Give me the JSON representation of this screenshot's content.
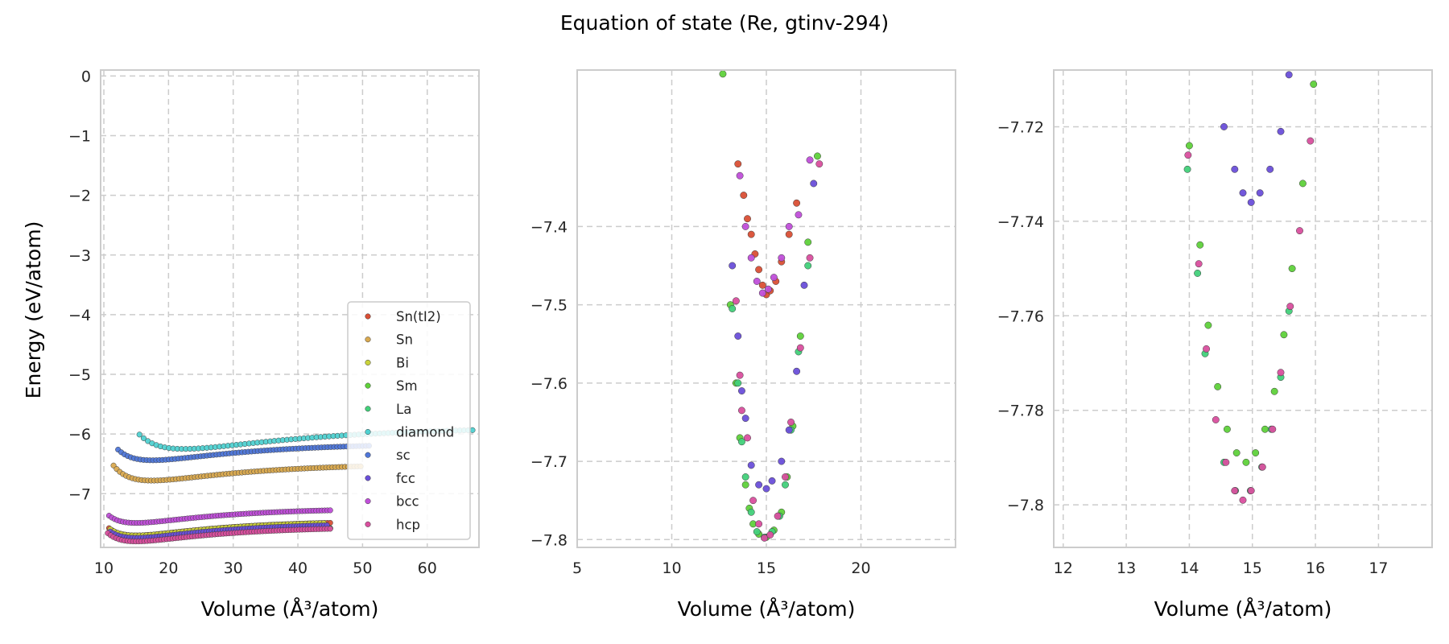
{
  "figure": {
    "title": "Equation of state (Re, gtinv-294)",
    "ylabel": "Energy (eV/atom)",
    "xlabel": "Volume (Å³/atom)"
  },
  "colors": {
    "Sn(tI2)": "#d94f35",
    "Sn": "#d9a94f",
    "Bi": "#c9d23a",
    "Sm": "#5fd13b",
    "La": "#42d07a",
    "diamond": "#4fd1d1",
    "sc": "#4f77d9",
    "fcc": "#6a4fd9",
    "bcc": "#c04fd9",
    "hcp": "#d94f9e"
  },
  "chart_data": [
    {
      "type": "scatter",
      "xlim": [
        9.5,
        68
      ],
      "ylim": [
        -7.9,
        0.1
      ],
      "xticks": [
        10,
        20,
        30,
        40,
        50,
        60
      ],
      "yticks": [
        0,
        -1,
        -2,
        -3,
        -4,
        -5,
        -6,
        -7
      ],
      "xlabel": "Volume (Å³/atom)",
      "ylabel": "Energy (eV/atom)",
      "grid": true,
      "legend_position": "lower-right",
      "legend": [
        "Sn(tI2)",
        "Sn",
        "Bi",
        "Sm",
        "La",
        "diamond",
        "sc",
        "fcc",
        "bcc",
        "hcp"
      ],
      "series": [
        {
          "name": "Sn(tI2)",
          "curve": {
            "v0": 15.0,
            "e0": -7.7,
            "vmin": 10.8,
            "vmax": 45,
            "n": 80
          }
        },
        {
          "name": "Sn",
          "curve": {
            "v0": 17.4,
            "e0": -6.78,
            "vmin": 11.5,
            "vmax": 49.7,
            "n": 80
          }
        },
        {
          "name": "Bi",
          "curve": {
            "v0": 15.0,
            "e0": -7.7,
            "vmin": 11.0,
            "vmax": 44,
            "n": 60
          }
        },
        {
          "name": "Sm",
          "curve": {
            "v0": 15.0,
            "e0": -7.79,
            "vmin": 10.9,
            "vmax": 45,
            "n": 80
          }
        },
        {
          "name": "La",
          "curve": {
            "v0": 15.0,
            "e0": -7.79,
            "vmin": 11.0,
            "vmax": 45,
            "n": 80
          }
        },
        {
          "name": "diamond",
          "curve": {
            "v0": 22.4,
            "e0": -6.25,
            "vmin": 15.5,
            "vmax": 67,
            "n": 80
          }
        },
        {
          "name": "sc",
          "curve": {
            "v0": 17.5,
            "e0": -6.44,
            "vmin": 12.2,
            "vmax": 51,
            "n": 80
          }
        },
        {
          "name": "fcc",
          "curve": {
            "v0": 15.0,
            "e0": -7.74,
            "vmin": 11.0,
            "vmax": 44.5,
            "n": 80
          }
        },
        {
          "name": "bcc",
          "curve": {
            "v0": 15.0,
            "e0": -7.49,
            "vmin": 10.8,
            "vmax": 45,
            "n": 80
          }
        },
        {
          "name": "hcp",
          "curve": {
            "v0": 15.0,
            "e0": -7.8,
            "vmin": 10.6,
            "vmax": 45,
            "n": 80
          }
        }
      ]
    },
    {
      "type": "scatter",
      "xlim": [
        5,
        25
      ],
      "ylim": [
        -7.81,
        -7.2
      ],
      "xticks": [
        5,
        10,
        15,
        20
      ],
      "yticks": [
        -7.4,
        -7.5,
        -7.6,
        -7.7,
        -7.8
      ],
      "xlabel": "Volume (Å³/atom)",
      "grid": true,
      "series": [
        {
          "name": "Sn(tI2)",
          "points": [
            [
              13.5,
              -7.32
            ],
            [
              13.8,
              -7.36
            ],
            [
              14.0,
              -7.39
            ],
            [
              14.2,
              -7.41
            ],
            [
              14.4,
              -7.435
            ],
            [
              14.6,
              -7.455
            ],
            [
              14.8,
              -7.475
            ],
            [
              15.0,
              -7.487
            ],
            [
              15.2,
              -7.482
            ],
            [
              15.5,
              -7.47
            ],
            [
              15.8,
              -7.445
            ],
            [
              16.2,
              -7.41
            ],
            [
              16.6,
              -7.37
            ]
          ]
        },
        {
          "name": "Sm",
          "points": [
            [
              12.7,
              -7.205
            ],
            [
              13.1,
              -7.5
            ],
            [
              13.4,
              -7.6
            ],
            [
              13.6,
              -7.67
            ],
            [
              13.9,
              -7.73
            ],
            [
              14.1,
              -7.76
            ],
            [
              14.3,
              -7.78
            ],
            [
              14.6,
              -7.793
            ],
            [
              15.0,
              -7.797
            ],
            [
              15.4,
              -7.788
            ],
            [
              15.8,
              -7.765
            ],
            [
              16.1,
              -7.72
            ],
            [
              16.4,
              -7.655
            ],
            [
              16.8,
              -7.54
            ],
            [
              17.2,
              -7.42
            ],
            [
              17.7,
              -7.31
            ]
          ]
        },
        {
          "name": "La",
          "points": [
            [
              13.2,
              -7.505
            ],
            [
              13.5,
              -7.6
            ],
            [
              13.7,
              -7.675
            ],
            [
              13.9,
              -7.72
            ],
            [
              14.2,
              -7.765
            ],
            [
              14.5,
              -7.79
            ],
            [
              14.9,
              -7.797
            ],
            [
              15.3,
              -7.79
            ],
            [
              15.7,
              -7.77
            ],
            [
              16.0,
              -7.73
            ],
            [
              16.3,
              -7.66
            ],
            [
              16.7,
              -7.56
            ],
            [
              17.2,
              -7.45
            ]
          ]
        },
        {
          "name": "fcc",
          "points": [
            [
              13.2,
              -7.45
            ],
            [
              13.5,
              -7.54
            ],
            [
              13.7,
              -7.61
            ],
            [
              13.9,
              -7.645
            ],
            [
              14.2,
              -7.705
            ],
            [
              14.6,
              -7.73
            ],
            [
              15.0,
              -7.735
            ],
            [
              15.3,
              -7.725
            ],
            [
              15.8,
              -7.7
            ],
            [
              16.2,
              -7.66
            ],
            [
              16.6,
              -7.585
            ],
            [
              17.0,
              -7.475
            ],
            [
              17.5,
              -7.345
            ]
          ]
        },
        {
          "name": "bcc",
          "points": [
            [
              13.6,
              -7.335
            ],
            [
              13.9,
              -7.4
            ],
            [
              14.2,
              -7.44
            ],
            [
              14.5,
              -7.47
            ],
            [
              14.8,
              -7.485
            ],
            [
              15.1,
              -7.48
            ],
            [
              15.4,
              -7.465
            ],
            [
              15.8,
              -7.44
            ],
            [
              16.2,
              -7.4
            ],
            [
              16.7,
              -7.385
            ],
            [
              17.3,
              -7.315
            ]
          ]
        },
        {
          "name": "hcp",
          "points": [
            [
              13.4,
              -7.495
            ],
            [
              13.6,
              -7.59
            ],
            [
              13.7,
              -7.635
            ],
            [
              14.0,
              -7.67
            ],
            [
              14.3,
              -7.75
            ],
            [
              14.6,
              -7.78
            ],
            [
              14.9,
              -7.798
            ],
            [
              15.2,
              -7.794
            ],
            [
              15.6,
              -7.77
            ],
            [
              16.0,
              -7.72
            ],
            [
              16.3,
              -7.65
            ],
            [
              16.8,
              -7.555
            ],
            [
              17.3,
              -7.44
            ],
            [
              17.8,
              -7.32
            ]
          ]
        }
      ]
    },
    {
      "type": "scatter",
      "xlim": [
        11.85,
        17.85
      ],
      "ylim": [
        -7.809,
        -7.708
      ],
      "xticks": [
        12,
        13,
        14,
        15,
        16,
        17
      ],
      "yticks": [
        -7.72,
        -7.74,
        -7.76,
        -7.78,
        -7.8
      ],
      "xlabel": "Volume (Å³/atom)",
      "grid": true,
      "series": [
        {
          "name": "Sm",
          "points": [
            [
              14.0,
              -7.724
            ],
            [
              14.17,
              -7.745
            ],
            [
              14.3,
              -7.762
            ],
            [
              14.45,
              -7.775
            ],
            [
              14.6,
              -7.784
            ],
            [
              14.75,
              -7.789
            ],
            [
              14.9,
              -7.791
            ],
            [
              15.05,
              -7.789
            ],
            [
              15.2,
              -7.784
            ],
            [
              15.35,
              -7.776
            ],
            [
              15.5,
              -7.764
            ],
            [
              15.63,
              -7.75
            ],
            [
              15.8,
              -7.732
            ],
            [
              15.97,
              -7.711
            ]
          ]
        },
        {
          "name": "La",
          "points": [
            [
              13.97,
              -7.729
            ],
            [
              14.13,
              -7.751
            ],
            [
              14.25,
              -7.768
            ],
            [
              14.55,
              -7.791
            ],
            [
              14.73,
              -7.797
            ],
            [
              14.97,
              -7.797
            ],
            [
              15.15,
              -7.792
            ],
            [
              15.3,
              -7.784
            ],
            [
              15.45,
              -7.773
            ],
            [
              15.58,
              -7.759
            ]
          ]
        },
        {
          "name": "fcc",
          "points": [
            [
              14.55,
              -7.72
            ],
            [
              14.72,
              -7.729
            ],
            [
              14.85,
              -7.734
            ],
            [
              14.98,
              -7.736
            ],
            [
              15.12,
              -7.734
            ],
            [
              15.28,
              -7.729
            ],
            [
              15.45,
              -7.721
            ],
            [
              15.58,
              -7.709
            ]
          ]
        },
        {
          "name": "hcp",
          "points": [
            [
              13.98,
              -7.726
            ],
            [
              14.15,
              -7.749
            ],
            [
              14.27,
              -7.767
            ],
            [
              14.42,
              -7.782
            ],
            [
              14.58,
              -7.791
            ],
            [
              14.72,
              -7.797
            ],
            [
              14.85,
              -7.799
            ],
            [
              14.98,
              -7.797
            ],
            [
              15.16,
              -7.792
            ],
            [
              15.32,
              -7.784
            ],
            [
              15.45,
              -7.772
            ],
            [
              15.6,
              -7.758
            ],
            [
              15.75,
              -7.742
            ],
            [
              15.92,
              -7.723
            ]
          ]
        }
      ]
    }
  ]
}
